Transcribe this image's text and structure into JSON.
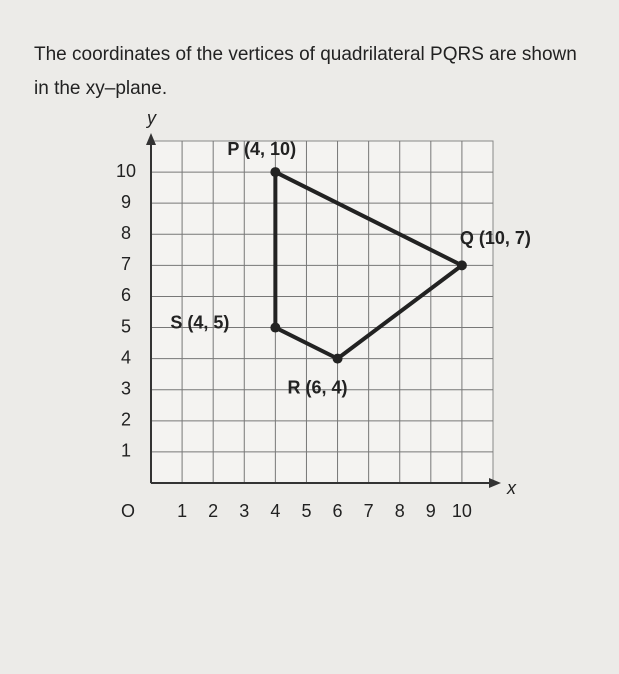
{
  "question": "The coordinates of the vertices of quadrilateral PQRS are shown in the xy–plane.",
  "chart_data": {
    "type": "polygon",
    "x_label": "x",
    "y_label": "y",
    "origin_label": "O",
    "point_labels": [
      "P (4, 10)",
      "Q (10, 7)",
      "R (6, 4)",
      "S (4, 5)"
    ],
    "x": [
      4,
      10,
      6,
      4
    ],
    "values": [
      10,
      7,
      4,
      5
    ],
    "color": "#222222",
    "xlim": [
      0,
      11
    ],
    "ylim": [
      0,
      11
    ],
    "xticks": [
      1,
      2,
      3,
      4,
      5,
      6,
      7,
      8,
      9,
      10
    ],
    "yticks": [
      1,
      2,
      3,
      4,
      5,
      6,
      7,
      8,
      9,
      10
    ],
    "grid": true
  }
}
